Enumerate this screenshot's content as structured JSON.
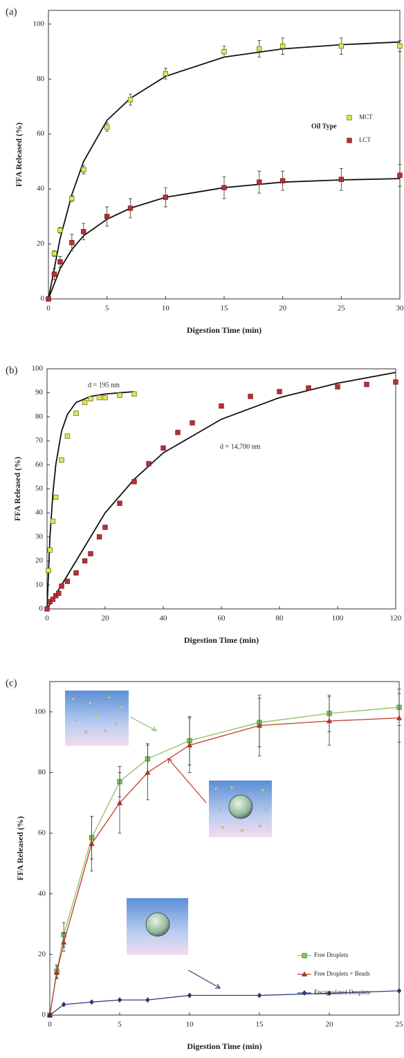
{
  "chart_data": [
    {
      "type": "scatter",
      "panel_label": "(a)",
      "xlabel": "Digestion Time (min)",
      "ylabel": "FFA Released (%)",
      "xlim": [
        0,
        30
      ],
      "ylim": [
        0,
        105
      ],
      "xticks": [
        0,
        5,
        10,
        15,
        20,
        25,
        30
      ],
      "yticks": [
        0,
        20,
        40,
        60,
        80,
        100
      ],
      "legend": "right",
      "legend_title": "Oil Type",
      "series": [
        {
          "name": "MCT",
          "color": "#e6e64c",
          "edge": "#6b6b2a",
          "marker": "square",
          "x": [
            0,
            0.5,
            1,
            2,
            3,
            5,
            7,
            10,
            15,
            18,
            20,
            25,
            30
          ],
          "values": [
            0,
            16.5,
            25,
            36.5,
            47,
            62.5,
            72.5,
            82,
            90,
            91,
            92,
            92,
            92
          ],
          "errors": [
            0,
            1,
            1,
            1,
            1.5,
            1.5,
            2,
            2,
            2,
            3,
            3,
            3,
            2
          ]
        },
        {
          "name": "LCT",
          "color": "#b5303a",
          "edge": "#7a1a1a",
          "marker": "square",
          "x": [
            0,
            0.5,
            1,
            2,
            3,
            5,
            7,
            10,
            15,
            18,
            20,
            25,
            30
          ],
          "values": [
            0,
            9,
            13.5,
            20.5,
            24.5,
            30,
            33,
            37,
            40.5,
            42.5,
            43,
            43.5,
            45
          ],
          "errors": [
            0,
            2,
            2,
            3,
            3,
            3.5,
            3.5,
            3.5,
            4,
            4,
            3.5,
            4,
            4
          ]
        }
      ],
      "fits": [
        {
          "x": [
            0,
            1,
            2,
            3,
            5,
            7,
            10,
            15,
            20,
            25,
            30
          ],
          "values": [
            0,
            22,
            38,
            50,
            65,
            73,
            81,
            88,
            91,
            92.5,
            93.5
          ]
        },
        {
          "x": [
            0,
            1,
            2,
            3,
            5,
            7,
            10,
            15,
            20,
            25,
            30
          ],
          "values": [
            0,
            11,
            18,
            23,
            29,
            33,
            37,
            40.5,
            42.5,
            43.3,
            43.8
          ]
        }
      ]
    },
    {
      "type": "scatter",
      "panel_label": "(b)",
      "xlabel": "Digestion Time (min)",
      "ylabel": "FFA Released (%)",
      "xlim": [
        0,
        120
      ],
      "ylim": [
        0,
        100
      ],
      "xticks": [
        0,
        20,
        40,
        60,
        80,
        100,
        120
      ],
      "yticks": [
        0,
        10,
        20,
        30,
        40,
        50,
        60,
        70,
        80,
        90,
        100
      ],
      "annotations": [
        "d = 195 nm",
        "d = 14,700 nm"
      ],
      "series": [
        {
          "color": "#e6e64c",
          "edge": "#6b6b2a",
          "marker": "square",
          "x": [
            0.5,
            1,
            2,
            3,
            5,
            7,
            10,
            13,
            15,
            18,
            20,
            25,
            30
          ],
          "values": [
            16,
            24.5,
            36.5,
            46.5,
            62,
            72,
            81.5,
            86,
            87.5,
            88,
            88,
            89,
            89.5
          ]
        },
        {
          "color": "#b5303a",
          "edge": "#7a1a1a",
          "marker": "square",
          "x": [
            0,
            1,
            2,
            3,
            4,
            5,
            7,
            10,
            13,
            15,
            18,
            20,
            25,
            30,
            35,
            40,
            45,
            50,
            60,
            70,
            80,
            90,
            100,
            110,
            120
          ],
          "values": [
            0,
            3,
            4,
            5.5,
            6.5,
            9.5,
            11.5,
            15,
            20,
            23,
            30,
            34,
            44,
            53,
            60.5,
            67,
            73.5,
            77.5,
            84.5,
            88.5,
            90.5,
            92,
            92.5,
            93.5,
            94.5
          ]
        }
      ],
      "fits": [
        {
          "x": [
            0,
            1,
            2,
            3,
            5,
            7,
            10,
            15,
            20,
            25,
            30
          ],
          "values": [
            0,
            30,
            48,
            60,
            74,
            81,
            86,
            88.5,
            89.5,
            90,
            90.5
          ]
        },
        {
          "x": [
            0,
            10,
            20,
            30,
            40,
            60,
            80,
            100,
            120
          ],
          "values": [
            0,
            20,
            40,
            54,
            65,
            79,
            88,
            94,
            98.5
          ]
        }
      ]
    },
    {
      "type": "line",
      "panel_label": "(c)",
      "xlabel": "Digestion Time (min)",
      "ylabel": "FFA Released (%)",
      "xlim": [
        0,
        25
      ],
      "ylim": [
        0,
        110
      ],
      "xticks": [
        0,
        5,
        10,
        15,
        20,
        25
      ],
      "yticks": [
        0,
        20,
        40,
        60,
        80,
        100
      ],
      "legend": "lower right",
      "series": [
        {
          "name": "Free Droplets",
          "color": "#8cc063",
          "edge": "#4f8a2f",
          "marker": "square",
          "x": [
            0,
            0.5,
            1,
            3,
            5,
            7,
            10,
            15,
            20,
            25
          ],
          "values": [
            0,
            14.5,
            26.5,
            58.5,
            77,
            84.5,
            90.5,
            96.5,
            99.5,
            101.5
          ],
          "errors": [
            0,
            2,
            4,
            7,
            5,
            5,
            8,
            8,
            6,
            6
          ]
        },
        {
          "name": "Free Droplets + Beads",
          "color": "#c0392b",
          "edge": "#8a1f16",
          "marker": "triangle",
          "x": [
            0,
            0.5,
            1,
            3,
            5,
            7,
            10,
            15,
            20,
            25
          ],
          "values": [
            0,
            14,
            24,
            56.5,
            70,
            80,
            89,
            95.5,
            97,
            98
          ],
          "errors": [
            0,
            2,
            3,
            9,
            10,
            9,
            9,
            10,
            8,
            8
          ]
        },
        {
          "name": "Encapsulated Droplets",
          "color": "#2c3e7a",
          "edge": "#1a2550",
          "marker": "diamond",
          "x": [
            0,
            1,
            3,
            5,
            7,
            10,
            15,
            20,
            25
          ],
          "values": [
            0,
            3.5,
            4.3,
            5,
            5,
            6.5,
            6.5,
            7.2,
            8
          ]
        }
      ]
    }
  ]
}
